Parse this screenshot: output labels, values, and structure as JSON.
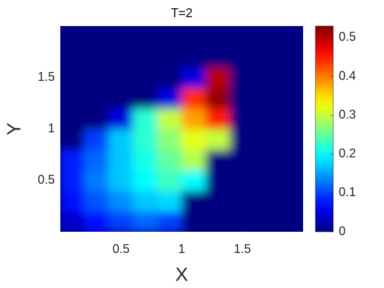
{
  "chart_data": {
    "type": "heatmap",
    "title": "T=2",
    "x_label": "X",
    "y_label": "Y",
    "colormap": "jet",
    "x": [
      0.1,
      0.3,
      0.5,
      0.7,
      0.9,
      1.1,
      1.3,
      1.5,
      1.7,
      1.9
    ],
    "y": [
      0.1,
      0.3,
      0.5,
      0.7,
      0.9,
      1.1,
      1.3,
      1.5,
      1.7,
      1.9
    ],
    "z": [
      [
        0.04,
        0.07,
        0.1,
        0.12,
        0.1,
        0,
        0,
        0,
        0,
        0
      ],
      [
        0.07,
        0.11,
        0.14,
        0.17,
        0.18,
        0,
        0,
        0,
        0,
        0
      ],
      [
        0.08,
        0.13,
        0.17,
        0.2,
        0.23,
        0.2,
        0,
        0,
        0,
        0
      ],
      [
        0.08,
        0.12,
        0.17,
        0.21,
        0.25,
        0.29,
        0,
        0,
        0,
        0
      ],
      [
        0,
        0.1,
        0.17,
        0.22,
        0.27,
        0.32,
        0.3,
        0,
        0,
        0
      ],
      [
        0,
        0,
        0.05,
        0.22,
        0.3,
        0.38,
        0.45,
        0,
        0,
        0
      ],
      [
        0,
        0,
        0,
        0,
        0.05,
        0.44,
        0.52,
        0,
        0,
        0
      ],
      [
        0,
        0,
        0,
        0,
        0,
        0.05,
        0.5,
        0,
        0,
        0
      ],
      [
        0,
        0,
        0,
        0,
        0,
        0,
        0,
        0,
        0,
        0
      ],
      [
        0,
        0,
        0,
        0,
        0,
        0,
        0,
        0,
        0,
        0
      ]
    ],
    "xlim": [
      0,
      2
    ],
    "ylim": [
      0,
      2
    ],
    "xticks": [
      0.5,
      1,
      1.5
    ],
    "yticks": [
      0.5,
      1,
      1.5
    ],
    "clim": [
      0,
      0.53
    ],
    "cticks": [
      0,
      0.1,
      0.2,
      0.3,
      0.4,
      0.5
    ]
  }
}
